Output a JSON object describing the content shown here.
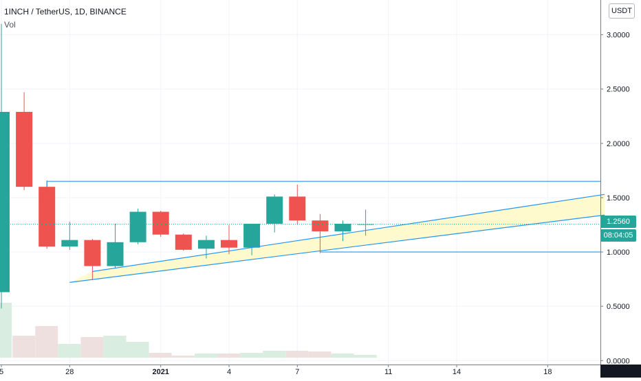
{
  "legend": {
    "title": "1INCH / TetherUS, 1D, BINANCE",
    "volume_label": "Vol"
  },
  "currency": "USDT",
  "last_price": "1.2560",
  "countdown": "08:04:05",
  "colors": {
    "up": "#26a69a",
    "down": "#ef5350",
    "up_volume": "#d9ede1",
    "down_volume": "#efe0e0",
    "trendline": "#2196f3",
    "channel_fill": "#fff9c4"
  },
  "chart_data": {
    "type": "candlestick",
    "symbol": "1INCH / TetherUS",
    "interval": "1D",
    "exchange": "BINANCE",
    "currency": "USDT",
    "ylim": [
      -0.03,
      3.32
    ],
    "y_ticks": [
      "0.0000",
      "0.5000",
      "1.0000",
      "1.5000",
      "2.0000",
      "2.5000",
      "3.0000"
    ],
    "x_ticks": [
      {
        "label": "5",
        "index": 0
      },
      {
        "label": "28",
        "index": 3
      },
      {
        "label": "2021",
        "index": 7
      },
      {
        "label": "4",
        "index": 10
      },
      {
        "label": "7",
        "index": 13
      },
      {
        "label": "11",
        "index": 17
      },
      {
        "label": "14",
        "index": 20
      },
      {
        "label": "18",
        "index": 24
      }
    ],
    "candles": [
      {
        "open": 0.63,
        "high": 3.1,
        "low": 0.48,
        "close": 2.29,
        "volume": 0.8
      },
      {
        "open": 2.29,
        "high": 2.47,
        "low": 1.57,
        "close": 1.6,
        "volume": 0.32
      },
      {
        "open": 1.6,
        "high": 1.66,
        "low": 1.03,
        "close": 1.05,
        "volume": 0.46
      },
      {
        "open": 1.05,
        "high": 1.28,
        "low": 1.02,
        "close": 1.11,
        "volume": 0.2
      },
      {
        "open": 1.11,
        "high": 1.12,
        "low": 0.74,
        "close": 0.87,
        "volume": 0.3
      },
      {
        "open": 0.87,
        "high": 1.26,
        "low": 0.85,
        "close": 1.09,
        "volume": 0.32
      },
      {
        "open": 1.09,
        "high": 1.4,
        "low": 1.07,
        "close": 1.37,
        "volume": 0.23
      },
      {
        "open": 1.37,
        "high": 1.38,
        "low": 1.14,
        "close": 1.16,
        "volume": 0.07
      },
      {
        "open": 1.16,
        "high": 1.17,
        "low": 1.01,
        "close": 1.02,
        "volume": 0.03
      },
      {
        "open": 1.03,
        "high": 1.15,
        "low": 0.94,
        "close": 1.11,
        "volume": 0.06
      },
      {
        "open": 1.11,
        "high": 1.25,
        "low": 0.98,
        "close": 1.04,
        "volume": 0.06
      },
      {
        "open": 1.04,
        "high": 1.26,
        "low": 0.97,
        "close": 1.26,
        "volume": 0.07
      },
      {
        "open": 1.26,
        "high": 1.53,
        "low": 1.18,
        "close": 1.51,
        "volume": 0.1
      },
      {
        "open": 1.51,
        "high": 1.62,
        "low": 1.25,
        "close": 1.29,
        "volume": 0.1
      },
      {
        "open": 1.29,
        "high": 1.35,
        "low": 0.99,
        "close": 1.19,
        "volume": 0.09
      },
      {
        "open": 1.19,
        "high": 1.29,
        "low": 1.1,
        "close": 1.26,
        "volume": 0.06
      },
      {
        "open": 1.252,
        "high": 1.39,
        "low": 1.15,
        "close": 1.256,
        "volume": 0.04
      }
    ],
    "drawings": {
      "horizontal_levels": [
        {
          "y": 1.65,
          "from_index": 2
        },
        {
          "y": 1.0,
          "from_index": 14
        }
      ],
      "channel": [
        {
          "x": [
            3,
            26.5
          ],
          "y": [
            0.72,
            1.34
          ]
        },
        {
          "x": [
            4,
            26.5
          ],
          "y": [
            0.82,
            1.53
          ]
        }
      ]
    }
  }
}
